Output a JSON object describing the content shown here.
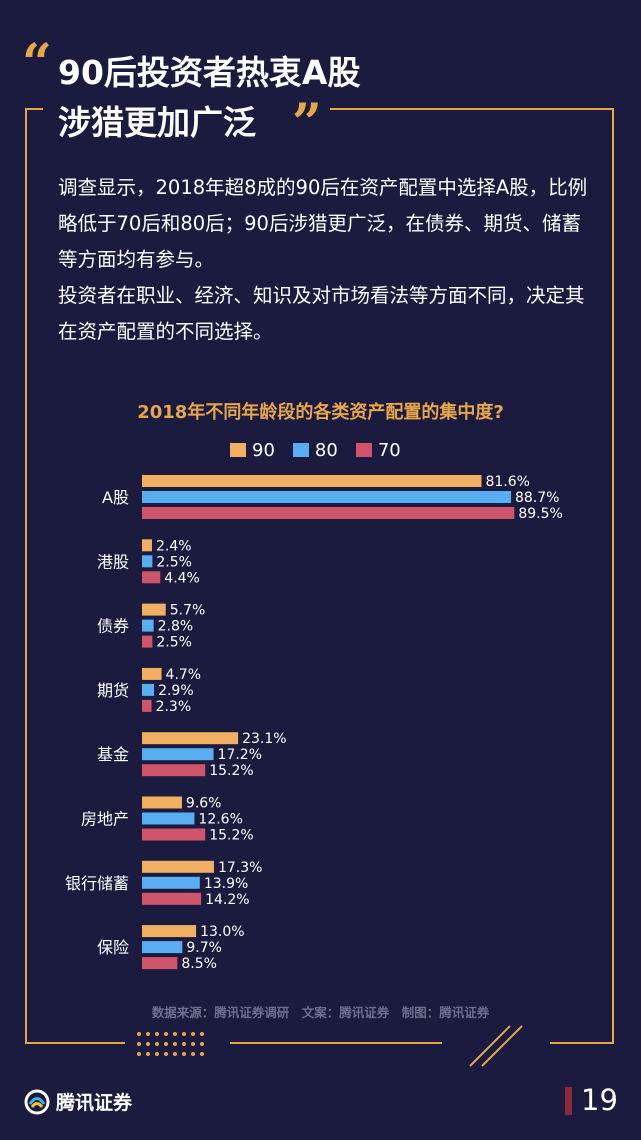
{
  "header": {
    "title_line1": "90后投资者热衷A股",
    "title_line2": "涉猎更加广泛",
    "quote_open": "“",
    "quote_close": "”"
  },
  "body": {
    "paragraph1": "调查显示，2018年超8成的90后在资产配置中选择A股，比例略低于70后和80后；90后涉猎更广泛，在债券、期货、储蓄等方面均有参与。",
    "paragraph2": "投资者在职业、经济、知识及对市场看法等方面不同，决定其在资产配置的不同选择。"
  },
  "chart_data": {
    "type": "bar",
    "orientation": "horizontal",
    "title": "2018年不同年龄段的各类资产配置的集中度?",
    "categories": [
      "A股",
      "港股",
      "债券",
      "期货",
      "基金",
      "房地产",
      "银行储蓄",
      "保险"
    ],
    "series": [
      {
        "name": "90",
        "color": "#f1b061",
        "values": [
          81.6,
          2.4,
          5.7,
          4.7,
          23.1,
          9.6,
          17.3,
          13.0
        ],
        "labels": [
          "81.6%",
          "2.4%",
          "5.7%",
          "4.7%",
          "23.1%",
          "9.6%",
          "17.3%",
          "13.0%"
        ]
      },
      {
        "name": "80",
        "color": "#58aef0",
        "values": [
          88.7,
          2.5,
          2.8,
          2.9,
          17.2,
          12.6,
          13.9,
          9.7
        ],
        "labels": [
          "88.7%",
          "2.5%",
          "2.8%",
          "2.9%",
          "17.2%",
          "12.6%",
          "13.9%",
          "9.7%"
        ]
      },
      {
        "name": "70",
        "color": "#d0546a",
        "values": [
          89.5,
          4.4,
          2.5,
          2.3,
          15.2,
          15.2,
          14.2,
          8.5
        ],
        "labels": [
          "89.5%",
          "4.4%",
          "2.5%",
          "2.3%",
          "15.2%",
          "15.2%",
          "14.2%",
          "8.5%"
        ]
      }
    ],
    "legend_position": "top"
  },
  "footer": {
    "source": "数据来源：腾讯证券调研　文案：腾讯证券　制图：腾讯证券",
    "logo_text": "腾讯证券",
    "page_number": "19"
  },
  "colors": {
    "background": "#1b1a3f",
    "accent": "#e8a64a",
    "text": "#ffffff"
  }
}
